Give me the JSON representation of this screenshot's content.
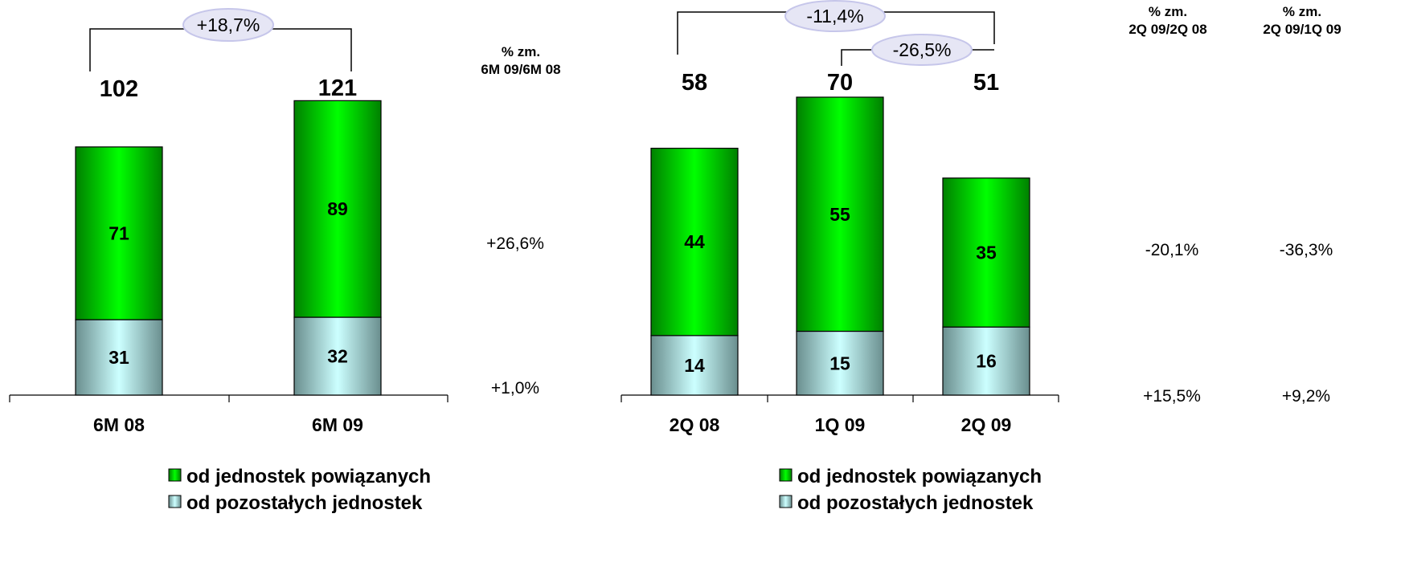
{
  "colors": {
    "related_top": "#00ff00",
    "related_bottom": "#008000",
    "other_light": "#ccffff",
    "other_dark": "#6a8e8e",
    "ellipse_fill": "#e6e6f5",
    "ellipse_stroke": "#c6c6ea"
  },
  "chart_data": [
    {
      "type": "bar",
      "stacked": true,
      "categories": [
        "6M 08",
        "6M 09"
      ],
      "series": [
        {
          "name": "od pozostałych jednostek",
          "values": [
            31,
            32
          ]
        },
        {
          "name": "od jednostek powiązanych",
          "values": [
            71,
            89
          ]
        }
      ],
      "totals": [
        "102",
        "121"
      ],
      "change_header": [
        "% zm.",
        "6M 09/6M 08"
      ],
      "series_changes": [
        {
          "series": "od jednostek powiązanych",
          "values": [
            "+26,6%"
          ]
        },
        {
          "series": "od pozostałych jednostek",
          "values": [
            "+1,0%"
          ]
        }
      ],
      "brackets": [
        {
          "from": 0,
          "to": 1,
          "label": "+18,7%"
        }
      ],
      "legend": [
        "od jednostek powiązanych",
        "od pozostałych jednostek"
      ],
      "legend_placement": "bottom",
      "ylim": [
        0,
        125
      ],
      "grid": false
    },
    {
      "type": "bar",
      "stacked": true,
      "categories": [
        "2Q 08",
        "1Q 09",
        "2Q 09"
      ],
      "series": [
        {
          "name": "od pozostałych jednostek",
          "values": [
            14,
            15,
            16
          ]
        },
        {
          "name": "od jednostek powiązanych",
          "values": [
            44,
            55,
            35
          ]
        }
      ],
      "totals": [
        "58",
        "70",
        "51"
      ],
      "change_headers": [
        [
          "% zm.",
          "2Q 09/2Q 08"
        ],
        [
          "% zm.",
          "2Q 09/1Q 09"
        ]
      ],
      "series_changes": [
        {
          "series": "od jednostek powiązanych",
          "values": [
            "-20,1%",
            "-36,3%"
          ]
        },
        {
          "series": "od pozostałych jednostek",
          "values": [
            "+15,5%",
            "+9,2%"
          ]
        }
      ],
      "brackets": [
        {
          "from": 0,
          "to": 2,
          "label": "-11,4%"
        },
        {
          "from": 1,
          "to": 2,
          "label": "-26,5%"
        }
      ],
      "legend": [
        "od jednostek powiązanych",
        "od pozostałych jednostek"
      ],
      "legend_placement": "bottom",
      "ylim": [
        0,
        70
      ],
      "grid": false
    }
  ]
}
